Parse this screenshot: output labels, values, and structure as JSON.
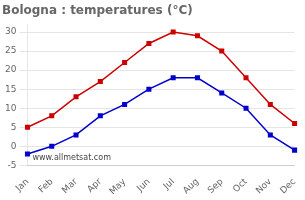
{
  "chart_data": {
    "type": "line",
    "title": "Bologna : temperatures (°C)",
    "categories": [
      "Jan",
      "Feb",
      "Mar",
      "Apr",
      "May",
      "Jun",
      "Jul",
      "Aug",
      "Sep",
      "Oct",
      "Nov",
      "Dec"
    ],
    "series": [
      {
        "color": "#cc0000",
        "values": [
          5,
          8,
          13,
          17,
          22,
          27,
          30,
          29,
          25,
          18,
          11,
          6
        ]
      },
      {
        "color": "#0000cc",
        "values": [
          -2,
          0,
          3,
          8,
          11,
          15,
          18,
          18,
          14,
          10,
          3,
          -1
        ]
      }
    ],
    "marker": "square",
    "ylim": [
      -5,
      32
    ],
    "yticks": [
      -5,
      0,
      5,
      10,
      15,
      20,
      25,
      30
    ],
    "grid": "y",
    "annotations": [
      "www.allmetsat.com"
    ]
  }
}
